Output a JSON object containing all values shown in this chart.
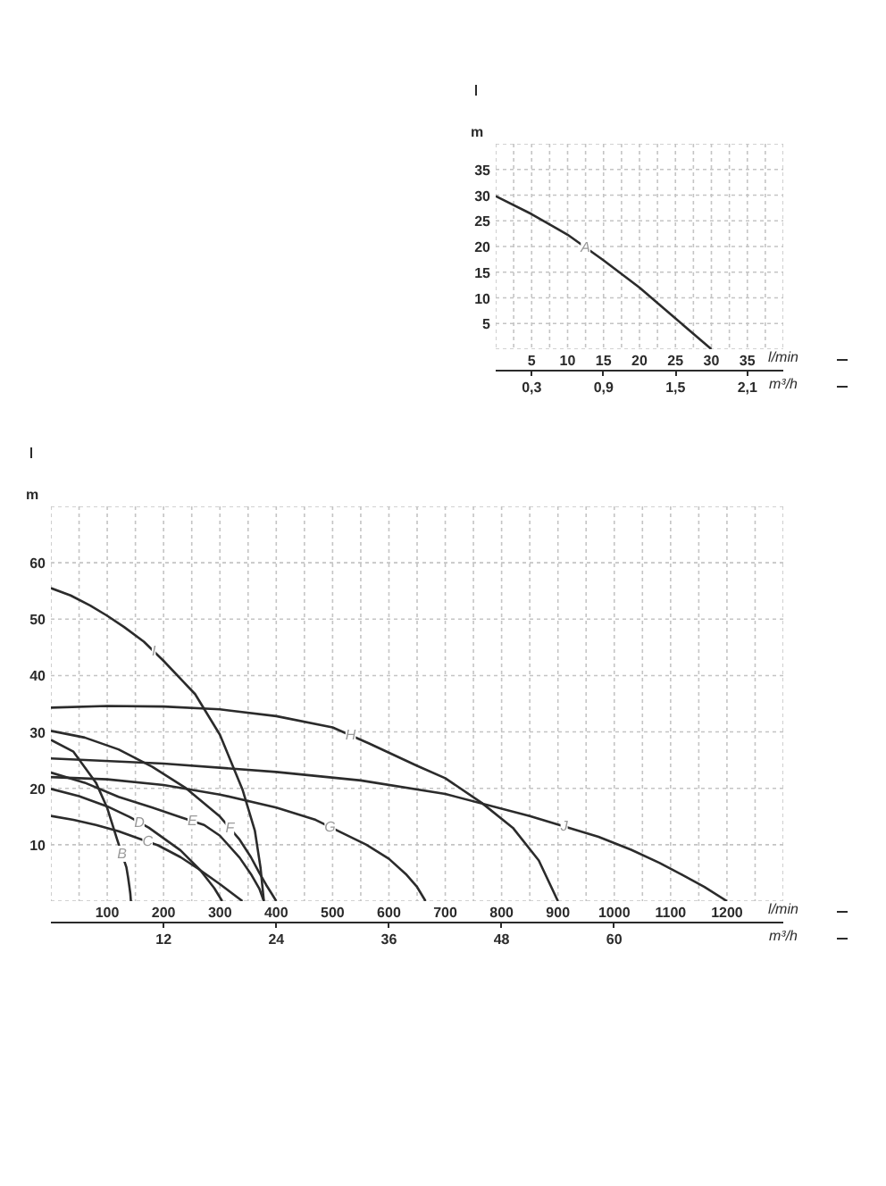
{
  "chart_data": [
    {
      "type": "line",
      "ylabel": "m",
      "xlabel": "l/min",
      "x2label": "m³/h",
      "xlim": [
        0,
        40
      ],
      "ylim": [
        0,
        40
      ],
      "xticks": [
        {
          "value": 0,
          "label": null
        },
        {
          "value": 2.5,
          "label": null
        },
        5,
        {
          "value": 7.5,
          "label": null
        },
        10,
        {
          "value": 12.5,
          "label": null
        },
        15,
        {
          "value": 17.5,
          "label": null
        },
        20,
        {
          "value": 22.5,
          "label": null
        },
        25,
        {
          "value": 27.5,
          "label": null
        },
        30,
        {
          "value": 32.5,
          "label": null
        },
        35,
        {
          "value": 37.5,
          "label": null
        },
        {
          "value": 40,
          "label": null
        }
      ],
      "yticks": [
        {
          "value": 0,
          "label": null
        },
        5,
        10,
        15,
        20,
        25,
        30,
        35,
        {
          "value": 40,
          "label": null
        }
      ],
      "x2lim": [
        0,
        2.4
      ],
      "x2ticks": [
        {
          "value": 0.3,
          "label": "0,3"
        },
        {
          "value": 0.9,
          "label": "0,9"
        },
        {
          "value": 1.5,
          "label": "1,5"
        },
        {
          "value": 2.1,
          "label": "2,1"
        }
      ],
      "grid": true,
      "series": [
        {
          "name": "A",
          "color": "#2b2b2b",
          "x": [
            0,
            5,
            10,
            15,
            20,
            25,
            30
          ],
          "values": [
            29.8,
            26.3,
            22.3,
            17.3,
            12,
            6,
            0
          ]
        }
      ]
    },
    {
      "type": "line",
      "ylabel": "m",
      "xlabel": "l/min",
      "x2label": "m³/h",
      "xlim": [
        0,
        1300
      ],
      "ylim": [
        0,
        70
      ],
      "xticks": [
        {
          "value": 0,
          "label": null
        },
        {
          "value": 50,
          "label": null
        },
        100,
        {
          "value": 150,
          "label": null
        },
        200,
        {
          "value": 250,
          "label": null
        },
        300,
        {
          "value": 350,
          "label": null
        },
        400,
        {
          "value": 450,
          "label": null
        },
        500,
        {
          "value": 550,
          "label": null
        },
        600,
        {
          "value": 650,
          "label": null
        },
        700,
        {
          "value": 750,
          "label": null
        },
        800,
        {
          "value": 850,
          "label": null
        },
        900,
        {
          "value": 950,
          "label": null
        },
        1000,
        {
          "value": 1050,
          "label": null
        },
        1100,
        {
          "value": 1150,
          "label": null
        },
        1200,
        {
          "value": 1250,
          "label": null
        },
        {
          "value": 1300,
          "label": null
        }
      ],
      "yticks": [
        {
          "value": 0,
          "label": null
        },
        10,
        20,
        30,
        40,
        50,
        60,
        {
          "value": 70,
          "label": null
        }
      ],
      "x2lim": [
        0,
        78
      ],
      "x2ticks": [
        12,
        24,
        36,
        48,
        60
      ],
      "grid": true,
      "series": [
        {
          "name": "B",
          "color": "#2b2b2b",
          "x": [
            0,
            40,
            80,
            100,
            118,
            134,
            137,
            139,
            141,
            142
          ],
          "values": [
            28.6,
            26.5,
            21,
            16.5,
            10.8,
            6,
            4.2,
            2.8,
            1.3,
            0
          ]
        },
        {
          "name": "C",
          "color": "#2b2b2b",
          "x": [
            0,
            40,
            80,
            120,
            153,
            190,
            230,
            262,
            300,
            340
          ],
          "values": [
            15.1,
            14.4,
            13.5,
            12.4,
            11.2,
            9.9,
            7.8,
            5.7,
            3,
            0
          ]
        },
        {
          "name": "D",
          "color": "#2b2b2b",
          "x": [
            0,
            50,
            100,
            140,
            174,
            230,
            265,
            290,
            304
          ],
          "values": [
            19.9,
            18.6,
            16.8,
            14.9,
            13,
            9,
            5.5,
            2.3,
            0
          ]
        },
        {
          "name": "E",
          "color": "#2b2b2b",
          "x": [
            0,
            60,
            120,
            180,
            230,
            272,
            300,
            335,
            355,
            370,
            378
          ],
          "values": [
            22.8,
            21,
            18.5,
            16.6,
            14.9,
            13.5,
            11.6,
            7.7,
            4.8,
            2.2,
            0
          ]
        },
        {
          "name": "F",
          "color": "#2b2b2b",
          "x": [
            0,
            60,
            120,
            180,
            240,
            300,
            335,
            355,
            370,
            382,
            392,
            400
          ],
          "values": [
            30.2,
            29,
            26.9,
            23.8,
            20,
            15,
            10.9,
            7.8,
            5,
            2.9,
            1.3,
            0
          ]
        },
        {
          "name": "G",
          "color": "#2b2b2b",
          "x": [
            0,
            100,
            200,
            300,
            400,
            470,
            521,
            560,
            600,
            630,
            650,
            665
          ],
          "values": [
            22,
            21.6,
            20.6,
            18.9,
            16.6,
            14.4,
            11.9,
            10,
            7.5,
            4.8,
            2.5,
            0
          ]
        },
        {
          "name": "H",
          "color": "#2b2b2b",
          "x": [
            0,
            100,
            200,
            300,
            400,
            500,
            564,
            650,
            700,
            765,
            820,
            866,
            900
          ],
          "values": [
            34.3,
            34.6,
            34.5,
            34,
            32.8,
            30.8,
            28,
            24,
            21.8,
            17.4,
            13,
            7.2,
            0
          ]
        },
        {
          "name": "I",
          "color": "#2b2b2b",
          "x": [
            0,
            35,
            70,
            100,
            130,
            165,
            200,
            256,
            300,
            340,
            362,
            372,
            378
          ],
          "values": [
            55.5,
            54.2,
            52.4,
            50.6,
            48.6,
            46,
            42.6,
            36.7,
            29.5,
            19.8,
            12.5,
            6,
            0
          ]
        },
        {
          "name": "J",
          "color": "#2b2b2b",
          "x": [
            0,
            200,
            400,
            550,
            700,
            850,
            972,
            1030,
            1080,
            1120,
            1160,
            1200
          ],
          "values": [
            25.3,
            24.4,
            22.9,
            21.4,
            19,
            15.1,
            11.4,
            9.1,
            6.8,
            4.7,
            2.5,
            0
          ]
        }
      ]
    }
  ]
}
